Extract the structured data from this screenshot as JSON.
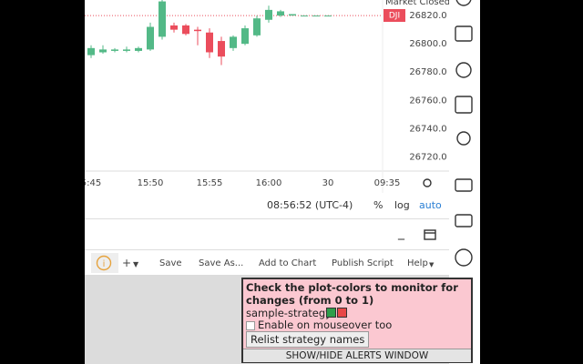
{
  "chart": {
    "type": "candlestick",
    "market_status": "Market Closed",
    "symbol": "DJI",
    "up_color": "#53b987",
    "down_color": "#eb4d5c",
    "ylim": [
      26710,
      26831
    ],
    "yticks": [
      {
        "value": 26820,
        "label": "26820.0"
      },
      {
        "value": 26800,
        "label": "26800.0"
      },
      {
        "value": 26780,
        "label": "26780.0"
      },
      {
        "value": 26760,
        "label": "26760.0"
      },
      {
        "value": 26740,
        "label": "26740.0"
      },
      {
        "value": 26720,
        "label": "26720.0"
      }
    ],
    "xticks": [
      "5:45",
      "15:50",
      "15:55",
      "16:00",
      "30",
      "09:35"
    ],
    "candles": [
      {
        "open": 26792,
        "high": 26799,
        "low": 26790,
        "close": 26797
      },
      {
        "open": 26794,
        "high": 26799,
        "low": 26793,
        "close": 26796
      },
      {
        "open": 26795,
        "high": 26797,
        "low": 26794,
        "close": 26796
      },
      {
        "open": 26795,
        "high": 26798,
        "low": 26794,
        "close": 26796
      },
      {
        "open": 26795,
        "high": 26798,
        "low": 26794,
        "close": 26797
      },
      {
        "open": 26796,
        "high": 26815,
        "low": 26795,
        "close": 26812
      },
      {
        "open": 26805,
        "high": 26831,
        "low": 26803,
        "close": 26830
      },
      {
        "open": 26813,
        "high": 26815,
        "low": 26808,
        "close": 26810
      },
      {
        "open": 26813,
        "high": 26814,
        "low": 26806,
        "close": 26807
      },
      {
        "open": 26810,
        "high": 26812,
        "low": 26799,
        "close": 26809
      },
      {
        "open": 26808,
        "high": 26811,
        "low": 26790,
        "close": 26794
      },
      {
        "open": 26802,
        "high": 26805,
        "low": 26785,
        "close": 26791
      },
      {
        "open": 26797,
        "high": 26806,
        "low": 26795,
        "close": 26805
      },
      {
        "open": 26800,
        "high": 26813,
        "low": 26799,
        "close": 26811
      },
      {
        "open": 26806,
        "high": 26820,
        "low": 26805,
        "close": 26818
      },
      {
        "open": 26817,
        "high": 26827,
        "low": 26815,
        "close": 26824
      },
      {
        "open": 26820,
        "high": 26824,
        "low": 26819,
        "close": 26823
      },
      {
        "open": 26820,
        "high": 26821,
        "low": 26820,
        "close": 26821
      },
      {
        "open": 26820,
        "high": 26820,
        "low": 26820,
        "close": 26820
      },
      {
        "open": 26820,
        "high": 26820,
        "low": 26820,
        "close": 26820
      },
      {
        "open": 26820,
        "high": 26820,
        "low": 26820,
        "close": 26820
      }
    ]
  },
  "status_bar": {
    "time": "08:56:52 (UTC-4)",
    "percent": "%",
    "log": "log",
    "auto": "auto"
  },
  "window_controls": {
    "minimize": "_"
  },
  "toolbar": {
    "add": "+",
    "buttons": [
      "Save",
      "Save As...",
      "Add to Chart",
      "Publish Script",
      "Help"
    ]
  },
  "popup": {
    "title": "Check the plot-colors to monitor for changes (from 0 to 1)",
    "strategy": "sample-strategy",
    "mouseover": "Enable on mouseover too",
    "relist": "Relist strategy names",
    "toggle": "SHOW/HIDE ALERTS WINDOW"
  }
}
